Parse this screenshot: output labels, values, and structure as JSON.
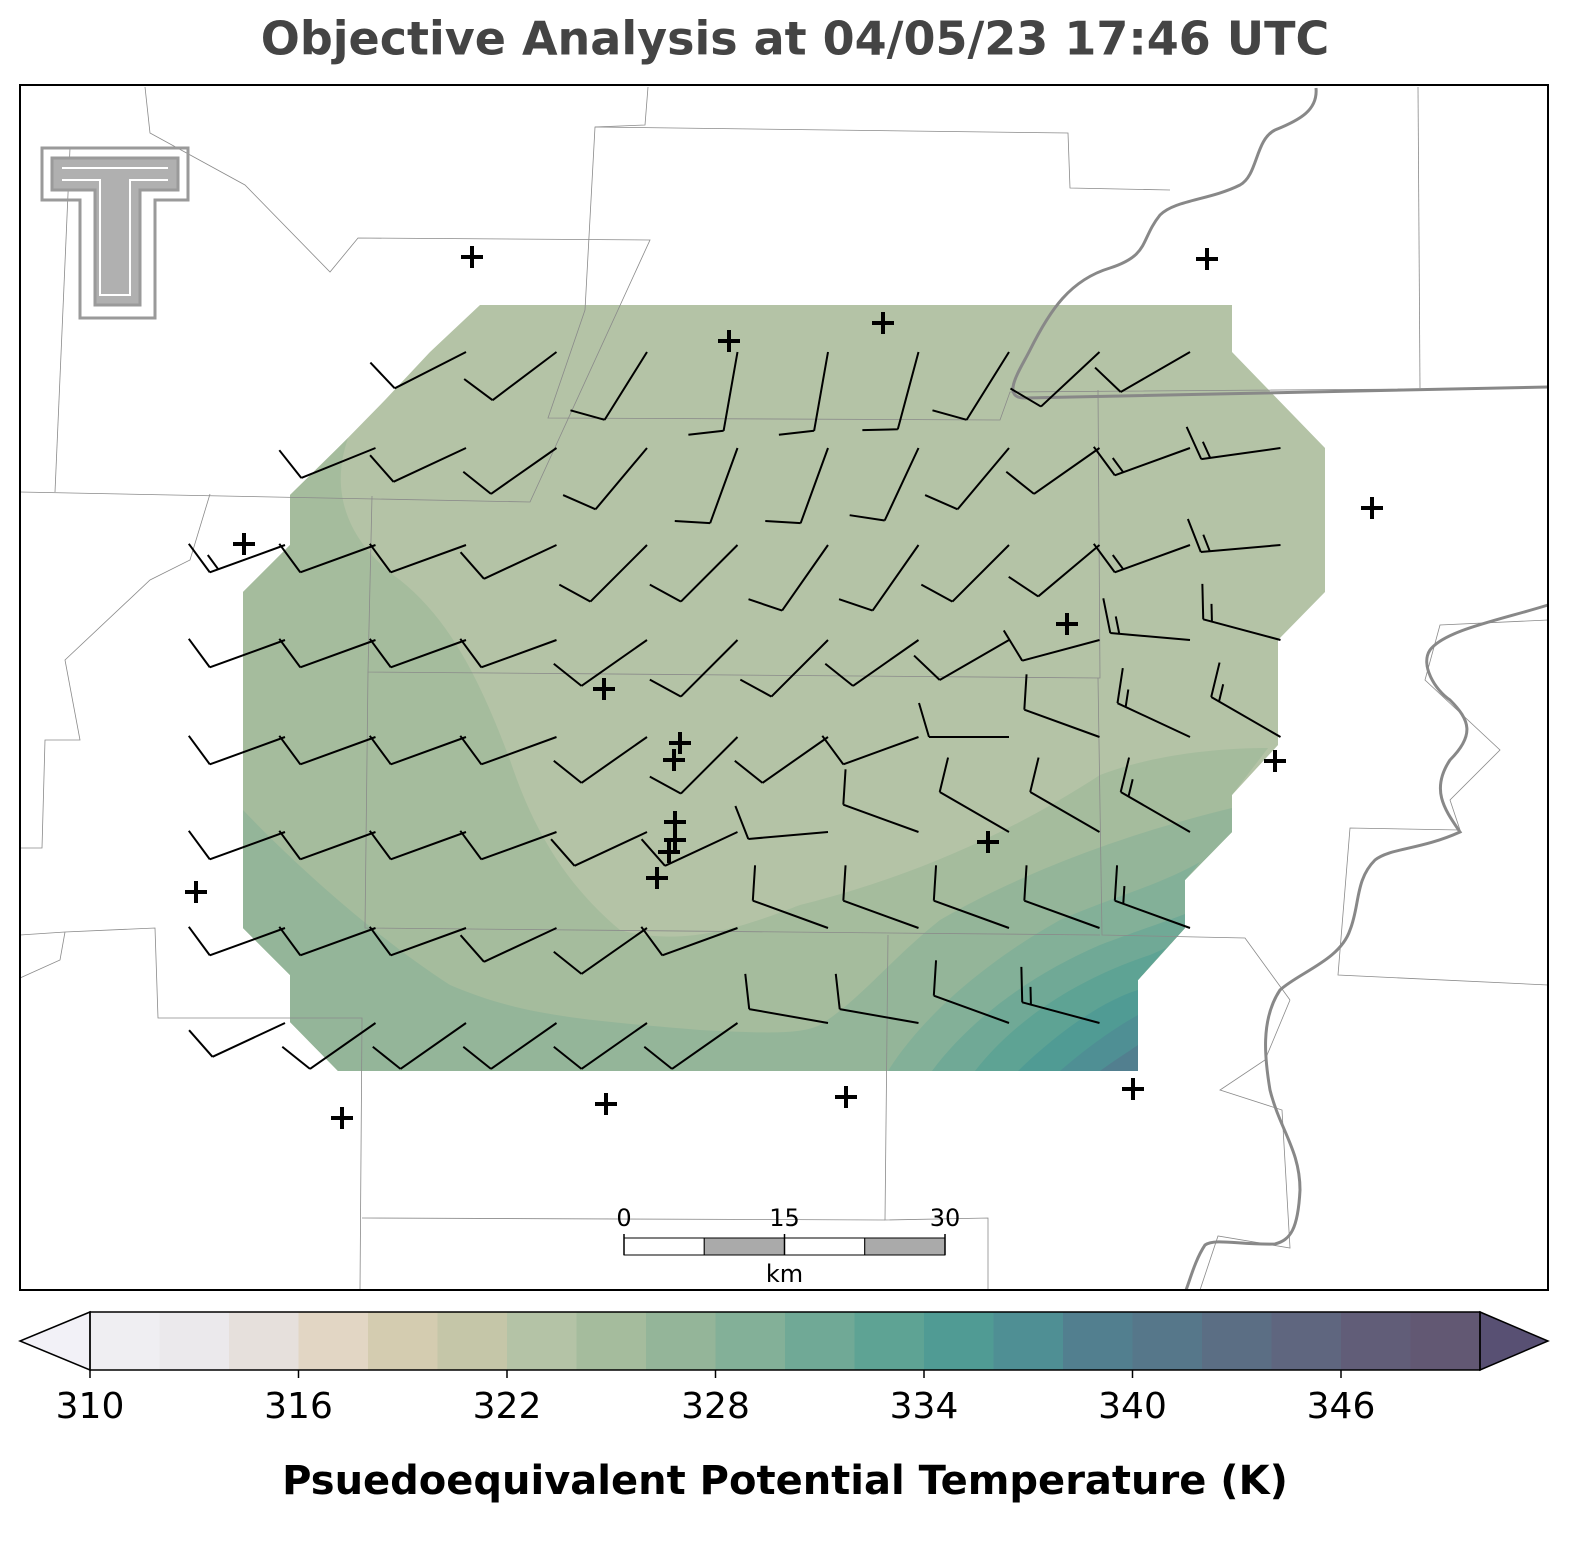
{
  "title": "Objective Analysis at 04/05/23 17:46 UTC",
  "colorbar": {
    "label": "Psuedoequivalent Potential Temperature (K)",
    "levels": [
      310,
      312,
      314,
      316,
      318,
      320,
      322,
      324,
      326,
      328,
      330,
      332,
      334,
      336,
      338,
      340,
      342,
      344,
      346,
      348,
      350
    ],
    "colors": [
      "#efeef2",
      "#ebe9ec",
      "#e6e0dc",
      "#e2d6c4",
      "#d4ccb0",
      "#c5c6a8",
      "#b4c3a6",
      "#a5bc9d",
      "#94b599",
      "#83b098",
      "#70a996",
      "#5ea394",
      "#509b94",
      "#4f8f94",
      "#527f8f",
      "#56778a",
      "#5b6e84",
      "#5f667f",
      "#615d78",
      "#625873"
    ],
    "under_color": "#f2f1f7",
    "over_color": "#585073",
    "ticks": [
      310,
      316,
      322,
      328,
      334,
      340,
      346
    ]
  },
  "scale_bar": {
    "ticks": [
      0,
      15,
      30
    ],
    "unit": "km"
  },
  "wind": {
    "direction": [
      [
        null,
        null,
        243,
        233,
        212,
        190,
        190,
        195,
        212,
        227,
        240,
        null
      ],
      [
        null,
        248,
        245,
        235,
        220,
        200,
        200,
        205,
        220,
        235,
        250,
        262
      ],
      [
        250,
        250,
        250,
        245,
        225,
        225,
        215,
        215,
        225,
        230,
        250,
        265
      ],
      [
        250,
        250,
        250,
        250,
        235,
        225,
        225,
        235,
        240,
        255,
        275,
        285
      ],
      [
        250,
        250,
        250,
        250,
        235,
        225,
        235,
        250,
        270,
        290,
        295,
        300
      ],
      [
        250,
        250,
        250,
        250,
        245,
        245,
        265,
        290,
        300,
        300,
        300,
        null
      ],
      [
        250,
        250,
        250,
        245,
        235,
        250,
        290,
        290,
        290,
        290,
        290,
        null
      ],
      [
        245,
        235,
        235,
        235,
        235,
        235,
        280,
        280,
        290,
        285,
        null,
        null
      ]
    ],
    "speed": [
      [
        null,
        null,
        10,
        10,
        10,
        10,
        10,
        10,
        10,
        10,
        10,
        null
      ],
      [
        null,
        10,
        10,
        10,
        10,
        10,
        10,
        10,
        10,
        10,
        15,
        15
      ],
      [
        15,
        10,
        10,
        10,
        10,
        10,
        10,
        10,
        10,
        10,
        15,
        15
      ],
      [
        10,
        10,
        10,
        10,
        10,
        10,
        10,
        10,
        10,
        10,
        15,
        15
      ],
      [
        10,
        10,
        10,
        10,
        10,
        10,
        10,
        10,
        10,
        10,
        15,
        15
      ],
      [
        10,
        10,
        10,
        10,
        10,
        10,
        10,
        10,
        10,
        10,
        15,
        null
      ],
      [
        10,
        10,
        10,
        10,
        10,
        10,
        10,
        10,
        10,
        10,
        15,
        null
      ],
      [
        10,
        10,
        10,
        10,
        10,
        10,
        10,
        10,
        10,
        15,
        null,
        null
      ]
    ]
  }
}
